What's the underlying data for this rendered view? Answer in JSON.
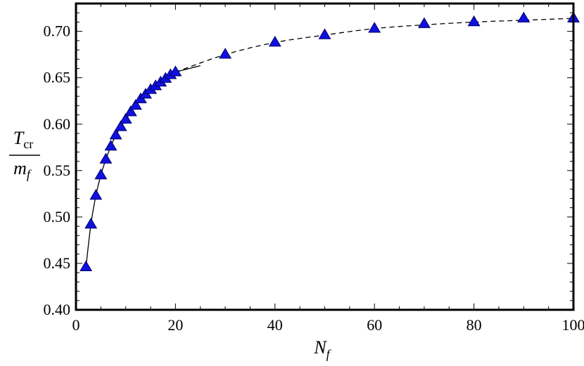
{
  "chart_data": {
    "type": "scatter",
    "title": "",
    "xlabel": {
      "main": "N",
      "sub": "f"
    },
    "ylabel": {
      "numerator_main": "T",
      "numerator_sub": "cr",
      "denominator_main": "m",
      "denominator_sub": "f"
    },
    "xlim": [
      0,
      100
    ],
    "ylim": [
      0.4,
      0.73
    ],
    "x_ticks": [
      0,
      20,
      40,
      60,
      80,
      100
    ],
    "x_tick_labels": [
      "0",
      "20",
      "40",
      "60",
      "80",
      "100"
    ],
    "y_ticks": [
      0.4,
      0.45,
      0.5,
      0.55,
      0.6,
      0.65,
      0.7
    ],
    "y_tick_labels": [
      "0.40",
      "0.45",
      "0.50",
      "0.55",
      "0.60",
      "0.65",
      "0.70"
    ],
    "grid": false,
    "legend": "none",
    "series": [
      {
        "marker": "triangle",
        "color": "#1010e0",
        "points": [
          [
            2,
            0.446
          ],
          [
            3,
            0.492
          ],
          [
            4,
            0.523
          ],
          [
            5,
            0.545
          ],
          [
            6,
            0.562
          ],
          [
            7,
            0.576
          ],
          [
            8,
            0.588
          ],
          [
            9,
            0.597
          ],
          [
            10,
            0.605
          ],
          [
            11,
            0.613
          ],
          [
            12,
            0.62
          ],
          [
            13,
            0.627
          ],
          [
            14,
            0.632
          ],
          [
            15,
            0.637
          ],
          [
            16,
            0.641
          ],
          [
            17,
            0.645
          ],
          [
            18,
            0.649
          ],
          [
            19,
            0.653
          ],
          [
            20,
            0.656
          ],
          [
            30,
            0.675
          ],
          [
            40,
            0.688
          ],
          [
            50,
            0.696
          ],
          [
            60,
            0.703
          ],
          [
            70,
            0.708
          ],
          [
            80,
            0.71
          ],
          [
            90,
            0.714
          ],
          [
            100,
            0.714
          ]
        ]
      }
    ],
    "solid_curve_range": [
      2,
      25
    ],
    "dashed_curve_range": [
      20,
      100
    ]
  }
}
